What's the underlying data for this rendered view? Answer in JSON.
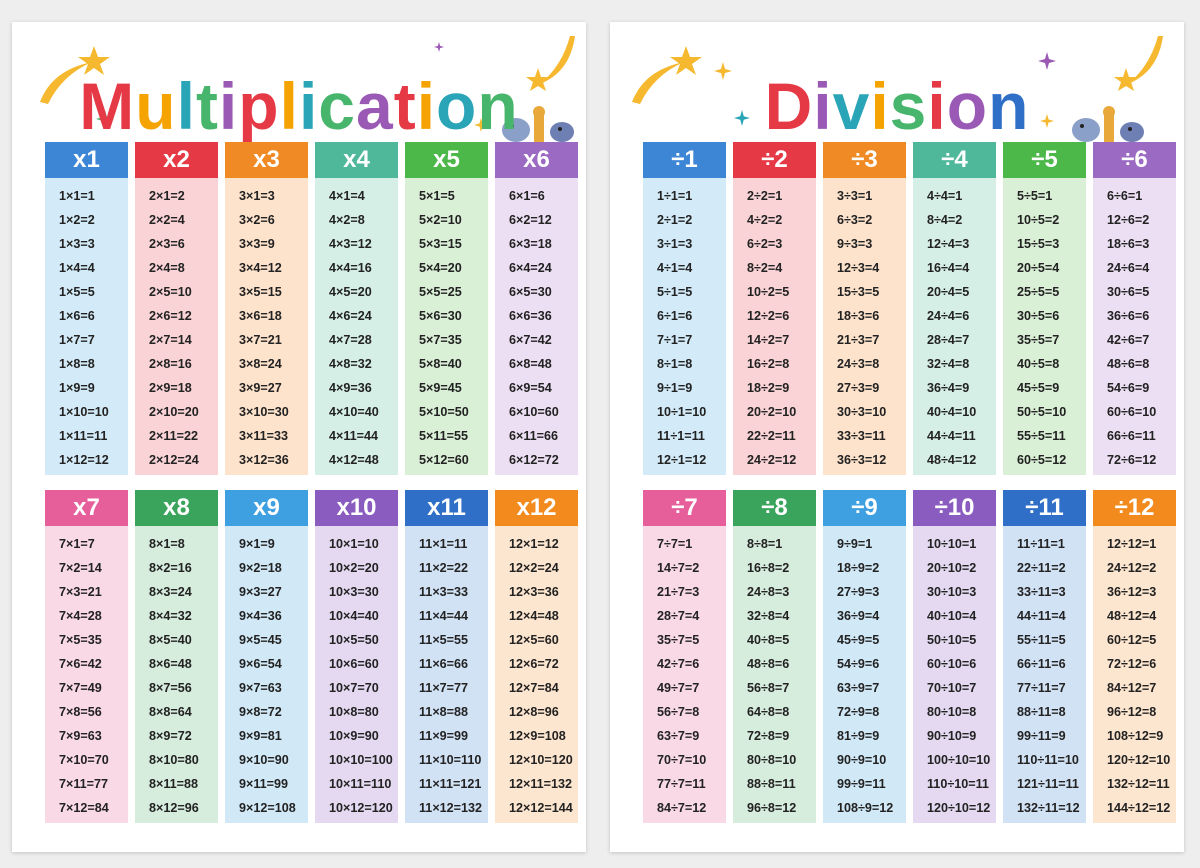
{
  "posters": [
    {
      "title": "Multiplication",
      "title_colors": [
        "#e63946",
        "#f4a300",
        "#2aa5b8",
        "#47b56b",
        "#9b59b6",
        "#e63946",
        "#f4a300",
        "#2aa5b8",
        "#47b56b",
        "#9b59b6",
        "#e63946",
        "#f4a300",
        "#2aa5b8",
        "#47b56b"
      ],
      "columns": [
        {
          "header": "x1",
          "head_color": "#3d86d6",
          "body_color": "#d3ebf8",
          "facts": [
            "1×1=1",
            "1×2=2",
            "1×3=3",
            "1×4=4",
            "1×5=5",
            "1×6=6",
            "1×7=7",
            "1×8=8",
            "1×9=9",
            "1×10=10",
            "1×11=11",
            "1×12=12"
          ]
        },
        {
          "header": "x2",
          "head_color": "#e63946",
          "body_color": "#f9d3d6",
          "facts": [
            "2×1=2",
            "2×2=4",
            "2×3=6",
            "2×4=8",
            "2×5=10",
            "2×6=12",
            "2×7=14",
            "2×8=16",
            "2×9=18",
            "2×10=20",
            "2×11=22",
            "2×12=24"
          ]
        },
        {
          "header": "x3",
          "head_color": "#f08a24",
          "body_color": "#fde3cc",
          "facts": [
            "3×1=3",
            "3×2=6",
            "3×3=9",
            "3×4=12",
            "3×5=15",
            "3×6=18",
            "3×7=21",
            "3×8=24",
            "3×9=27",
            "3×10=30",
            "3×11=33",
            "3×12=36"
          ]
        },
        {
          "header": "x4",
          "head_color": "#4fb79a",
          "body_color": "#d6efe6",
          "facts": [
            "4×1=4",
            "4×2=8",
            "4×3=12",
            "4×4=16",
            "4×5=20",
            "4×6=24",
            "4×7=28",
            "4×8=32",
            "4×9=36",
            "4×10=40",
            "4×11=44",
            "4×12=48"
          ]
        },
        {
          "header": "x5",
          "head_color": "#4cb84a",
          "body_color": "#d9efd6",
          "facts": [
            "5×1=5",
            "5×2=10",
            "5×3=15",
            "5×4=20",
            "5×5=25",
            "5×6=30",
            "5×7=35",
            "5×8=40",
            "5×9=45",
            "5×10=50",
            "5×11=55",
            "5×12=60"
          ]
        },
        {
          "header": "x6",
          "head_color": "#9b6bc4",
          "body_color": "#ecdff3",
          "facts": [
            "6×1=6",
            "6×2=12",
            "6×3=18",
            "6×4=24",
            "6×5=30",
            "6×6=36",
            "6×7=42",
            "6×8=48",
            "6×9=54",
            "6×10=60",
            "6×11=66",
            "6×12=72"
          ]
        },
        {
          "header": "x7",
          "head_color": "#e65f9a",
          "body_color": "#f9d9e6",
          "facts": [
            "7×1=7",
            "7×2=14",
            "7×3=21",
            "7×4=28",
            "7×5=35",
            "7×6=42",
            "7×7=49",
            "7×8=56",
            "7×9=63",
            "7×10=70",
            "7×11=77",
            "7×12=84"
          ]
        },
        {
          "header": "x8",
          "head_color": "#3aa35c",
          "body_color": "#d6ecdc",
          "facts": [
            "8×1=8",
            "8×2=16",
            "8×3=24",
            "8×4=32",
            "8×5=40",
            "8×6=48",
            "8×7=56",
            "8×8=64",
            "8×9=72",
            "8×10=80",
            "8×11=88",
            "8×12=96"
          ]
        },
        {
          "header": "x9",
          "head_color": "#3ea0e0",
          "body_color": "#d1e9f7",
          "facts": [
            "9×1=9",
            "9×2=18",
            "9×3=27",
            "9×4=36",
            "9×5=45",
            "9×6=54",
            "9×7=63",
            "9×8=72",
            "9×9=81",
            "9×10=90",
            "9×11=99",
            "9×12=108"
          ]
        },
        {
          "header": "x10",
          "head_color": "#8a5cc0",
          "body_color": "#e4d9f1",
          "facts": [
            "10×1=10",
            "10×2=20",
            "10×3=30",
            "10×4=40",
            "10×5=50",
            "10×6=60",
            "10×7=70",
            "10×8=80",
            "10×9=90",
            "10×10=100",
            "10×11=110",
            "10×12=120"
          ]
        },
        {
          "header": "x11",
          "head_color": "#2f6fc7",
          "body_color": "#d2e2f5",
          "facts": [
            "11×1=11",
            "11×2=22",
            "11×3=33",
            "11×4=44",
            "11×5=55",
            "11×6=66",
            "11×7=77",
            "11×8=88",
            "11×9=99",
            "11×10=110",
            "11×11=121",
            "11×12=132"
          ]
        },
        {
          "header": "x12",
          "head_color": "#f28a1d",
          "body_color": "#fde6cf",
          "facts": [
            "12×1=12",
            "12×2=24",
            "12×3=36",
            "12×4=48",
            "12×5=60",
            "12×6=72",
            "12×7=84",
            "12×8=96",
            "12×9=108",
            "12×10=120",
            "12×11=132",
            "12×12=144"
          ]
        }
      ]
    },
    {
      "title": "Division",
      "title_colors": [
        "#e63946",
        "#9b59b6",
        "#2aa5b8",
        "#f4a300",
        "#47b56b",
        "#e63946",
        "#9b59b6",
        "#2f6fc7"
      ],
      "columns": [
        {
          "header": "÷1",
          "head_color": "#3d86d6",
          "body_color": "#d3ebf8",
          "facts": [
            "1÷1=1",
            "2÷1=2",
            "3÷1=3",
            "4÷1=4",
            "5÷1=5",
            "6÷1=6",
            "7÷1=7",
            "8÷1=8",
            "9÷1=9",
            "10÷1=10",
            "11÷1=11",
            "12÷1=12"
          ]
        },
        {
          "header": "÷2",
          "head_color": "#e63946",
          "body_color": "#f9d3d6",
          "facts": [
            "2÷2=1",
            "4÷2=2",
            "6÷2=3",
            "8÷2=4",
            "10÷2=5",
            "12÷2=6",
            "14÷2=7",
            "16÷2=8",
            "18÷2=9",
            "20÷2=10",
            "22÷2=11",
            "24÷2=12"
          ]
        },
        {
          "header": "÷3",
          "head_color": "#f08a24",
          "body_color": "#fde3cc",
          "facts": [
            "3÷3=1",
            "6÷3=2",
            "9÷3=3",
            "12÷3=4",
            "15÷3=5",
            "18÷3=6",
            "21÷3=7",
            "24÷3=8",
            "27÷3=9",
            "30÷3=10",
            "33÷3=11",
            "36÷3=12"
          ]
        },
        {
          "header": "÷4",
          "head_color": "#4fb79a",
          "body_color": "#d6efe6",
          "facts": [
            "4÷4=1",
            "8÷4=2",
            "12÷4=3",
            "16÷4=4",
            "20÷4=5",
            "24÷4=6",
            "28÷4=7",
            "32÷4=8",
            "36÷4=9",
            "40÷4=10",
            "44÷4=11",
            "48÷4=12"
          ]
        },
        {
          "header": "÷5",
          "head_color": "#4cb84a",
          "body_color": "#d9efd6",
          "facts": [
            "5÷5=1",
            "10÷5=2",
            "15÷5=3",
            "20÷5=4",
            "25÷5=5",
            "30÷5=6",
            "35÷5=7",
            "40÷5=8",
            "45÷5=9",
            "50÷5=10",
            "55÷5=11",
            "60÷5=12"
          ]
        },
        {
          "header": "÷6",
          "head_color": "#9b6bc4",
          "body_color": "#ecdff3",
          "facts": [
            "6÷6=1",
            "12÷6=2",
            "18÷6=3",
            "24÷6=4",
            "30÷6=5",
            "36÷6=6",
            "42÷6=7",
            "48÷6=8",
            "54÷6=9",
            "60÷6=10",
            "66÷6=11",
            "72÷6=12"
          ]
        },
        {
          "header": "÷7",
          "head_color": "#e65f9a",
          "body_color": "#f9d9e6",
          "facts": [
            "7÷7=1",
            "14÷7=2",
            "21÷7=3",
            "28÷7=4",
            "35÷7=5",
            "42÷7=6",
            "49÷7=7",
            "56÷7=8",
            "63÷7=9",
            "70÷7=10",
            "77÷7=11",
            "84÷7=12"
          ]
        },
        {
          "header": "÷8",
          "head_color": "#3aa35c",
          "body_color": "#d6ecdc",
          "facts": [
            "8÷8=1",
            "16÷8=2",
            "24÷8=3",
            "32÷8=4",
            "40÷8=5",
            "48÷8=6",
            "56÷8=7",
            "64÷8=8",
            "72÷8=9",
            "80÷8=10",
            "88÷8=11",
            "96÷8=12"
          ]
        },
        {
          "header": "÷9",
          "head_color": "#3ea0e0",
          "body_color": "#d1e9f7",
          "facts": [
            "9÷9=1",
            "18÷9=2",
            "27÷9=3",
            "36÷9=4",
            "45÷9=5",
            "54÷9=6",
            "63÷9=7",
            "72÷9=8",
            "81÷9=9",
            "90÷9=10",
            "99÷9=11",
            "108÷9=12"
          ]
        },
        {
          "header": "÷10",
          "head_color": "#8a5cc0",
          "body_color": "#e4d9f1",
          "facts": [
            "10÷10=1",
            "20÷10=2",
            "30÷10=3",
            "40÷10=4",
            "50÷10=5",
            "60÷10=6",
            "70÷10=7",
            "80÷10=8",
            "90÷10=9",
            "100÷10=10",
            "110÷10=11",
            "120÷10=12"
          ]
        },
        {
          "header": "÷11",
          "head_color": "#2f6fc7",
          "body_color": "#d2e2f5",
          "facts": [
            "11÷11=1",
            "22÷11=2",
            "33÷11=3",
            "44÷11=4",
            "55÷11=5",
            "66÷11=6",
            "77÷11=7",
            "88÷11=8",
            "99÷11=9",
            "110÷11=10",
            "121÷11=11",
            "132÷11=12"
          ]
        },
        {
          "header": "÷12",
          "head_color": "#f28a1d",
          "body_color": "#fde6cf",
          "facts": [
            "12÷12=1",
            "24÷12=2",
            "36÷12=3",
            "48÷12=4",
            "60÷12=5",
            "72÷12=6",
            "84÷12=7",
            "96÷12=8",
            "108÷12=9",
            "120÷12=10",
            "132÷12=11",
            "144÷12=12"
          ]
        }
      ]
    }
  ],
  "decorations": [
    "shooting-star-icon",
    "sparkle-icon",
    "mascot-elephant-icon",
    "mascot-giraffe-icon",
    "mascot-hippo-icon"
  ],
  "star_color": "#f5b82e"
}
